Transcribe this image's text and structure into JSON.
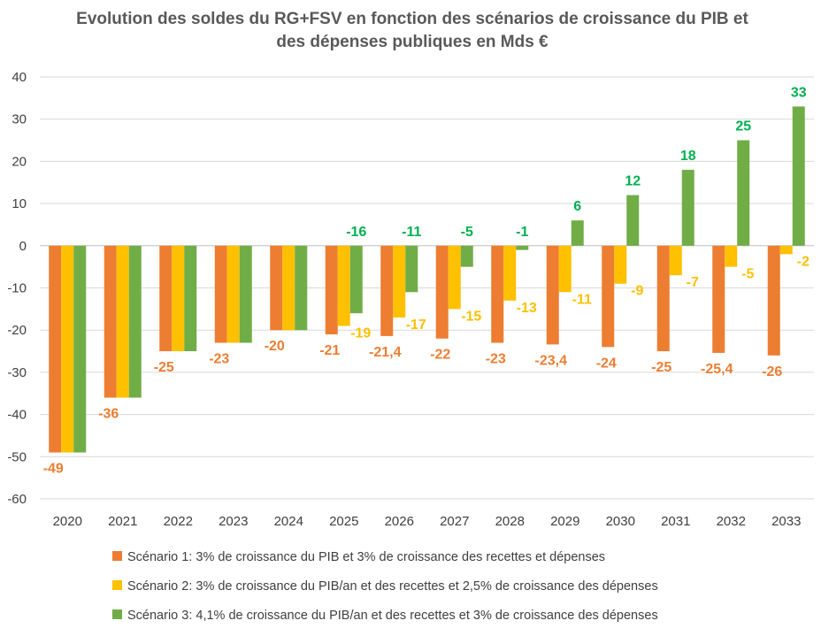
{
  "chart_data": {
    "type": "bar",
    "title": [
      "Evolution des soldes du RG+FSV en fonction des scénarios de croissance du PIB et",
      "des dépenses publiques en Mds €"
    ],
    "xlabel": "",
    "ylabel": "",
    "ylim": [
      -60,
      40
    ],
    "yticks": [
      "-60",
      "-50",
      "-40",
      "-30",
      "-20",
      "-10",
      "0",
      "10",
      "20",
      "30",
      "40"
    ],
    "grid": true,
    "legend_position": "bottom",
    "categories": [
      "2020",
      "2021",
      "2022",
      "2023",
      "2024",
      "2025",
      "2026",
      "2027",
      "2028",
      "2029",
      "2030",
      "2031",
      "2032",
      "2033"
    ],
    "series": [
      {
        "name": "Scénario 1: 3% de croissance du PIB et 3% de croissance des recettes et dépenses",
        "color": "#ED7D31",
        "values": [
          -49,
          -36,
          -25,
          -23,
          -20,
          -21,
          -21.4,
          -22,
          -23,
          -23.4,
          -24,
          -25,
          -25.4,
          -26
        ],
        "labels": [
          "-49",
          "-36",
          "-25",
          "-23",
          "-20",
          "-21",
          "-21,4",
          "-22",
          "-23",
          "-23,4",
          "-24",
          "-25",
          "-25,4",
          "-26"
        ]
      },
      {
        "name": "Scénario 2: 3% de croissance du PIB/an et des recettes et 2,5% de croissance des dépenses",
        "color": "#FFC000",
        "values": [
          -49,
          -36,
          -25,
          -23,
          -20,
          -19,
          -17,
          -15,
          -13,
          -11,
          -9,
          -7,
          -5,
          -2
        ],
        "labels": [
          null,
          null,
          null,
          null,
          null,
          "-19",
          "-17",
          "-15",
          "-13",
          "-11",
          "-9",
          "-7",
          "-5",
          "-2"
        ]
      },
      {
        "name": "Scénario 3: 4,1% de croissance du PIB/an et des recettes et 3% de croissance des dépenses",
        "color": "#70AD47",
        "label_color": "#00B050",
        "values": [
          -49,
          -36,
          -25,
          -23,
          -20,
          -16,
          -11,
          -5,
          -1,
          6,
          12,
          18,
          25,
          33
        ],
        "labels": [
          null,
          null,
          null,
          null,
          null,
          "-16",
          "-11",
          "-5",
          "-1",
          "6",
          "12",
          "18",
          "25",
          "33"
        ]
      }
    ]
  }
}
